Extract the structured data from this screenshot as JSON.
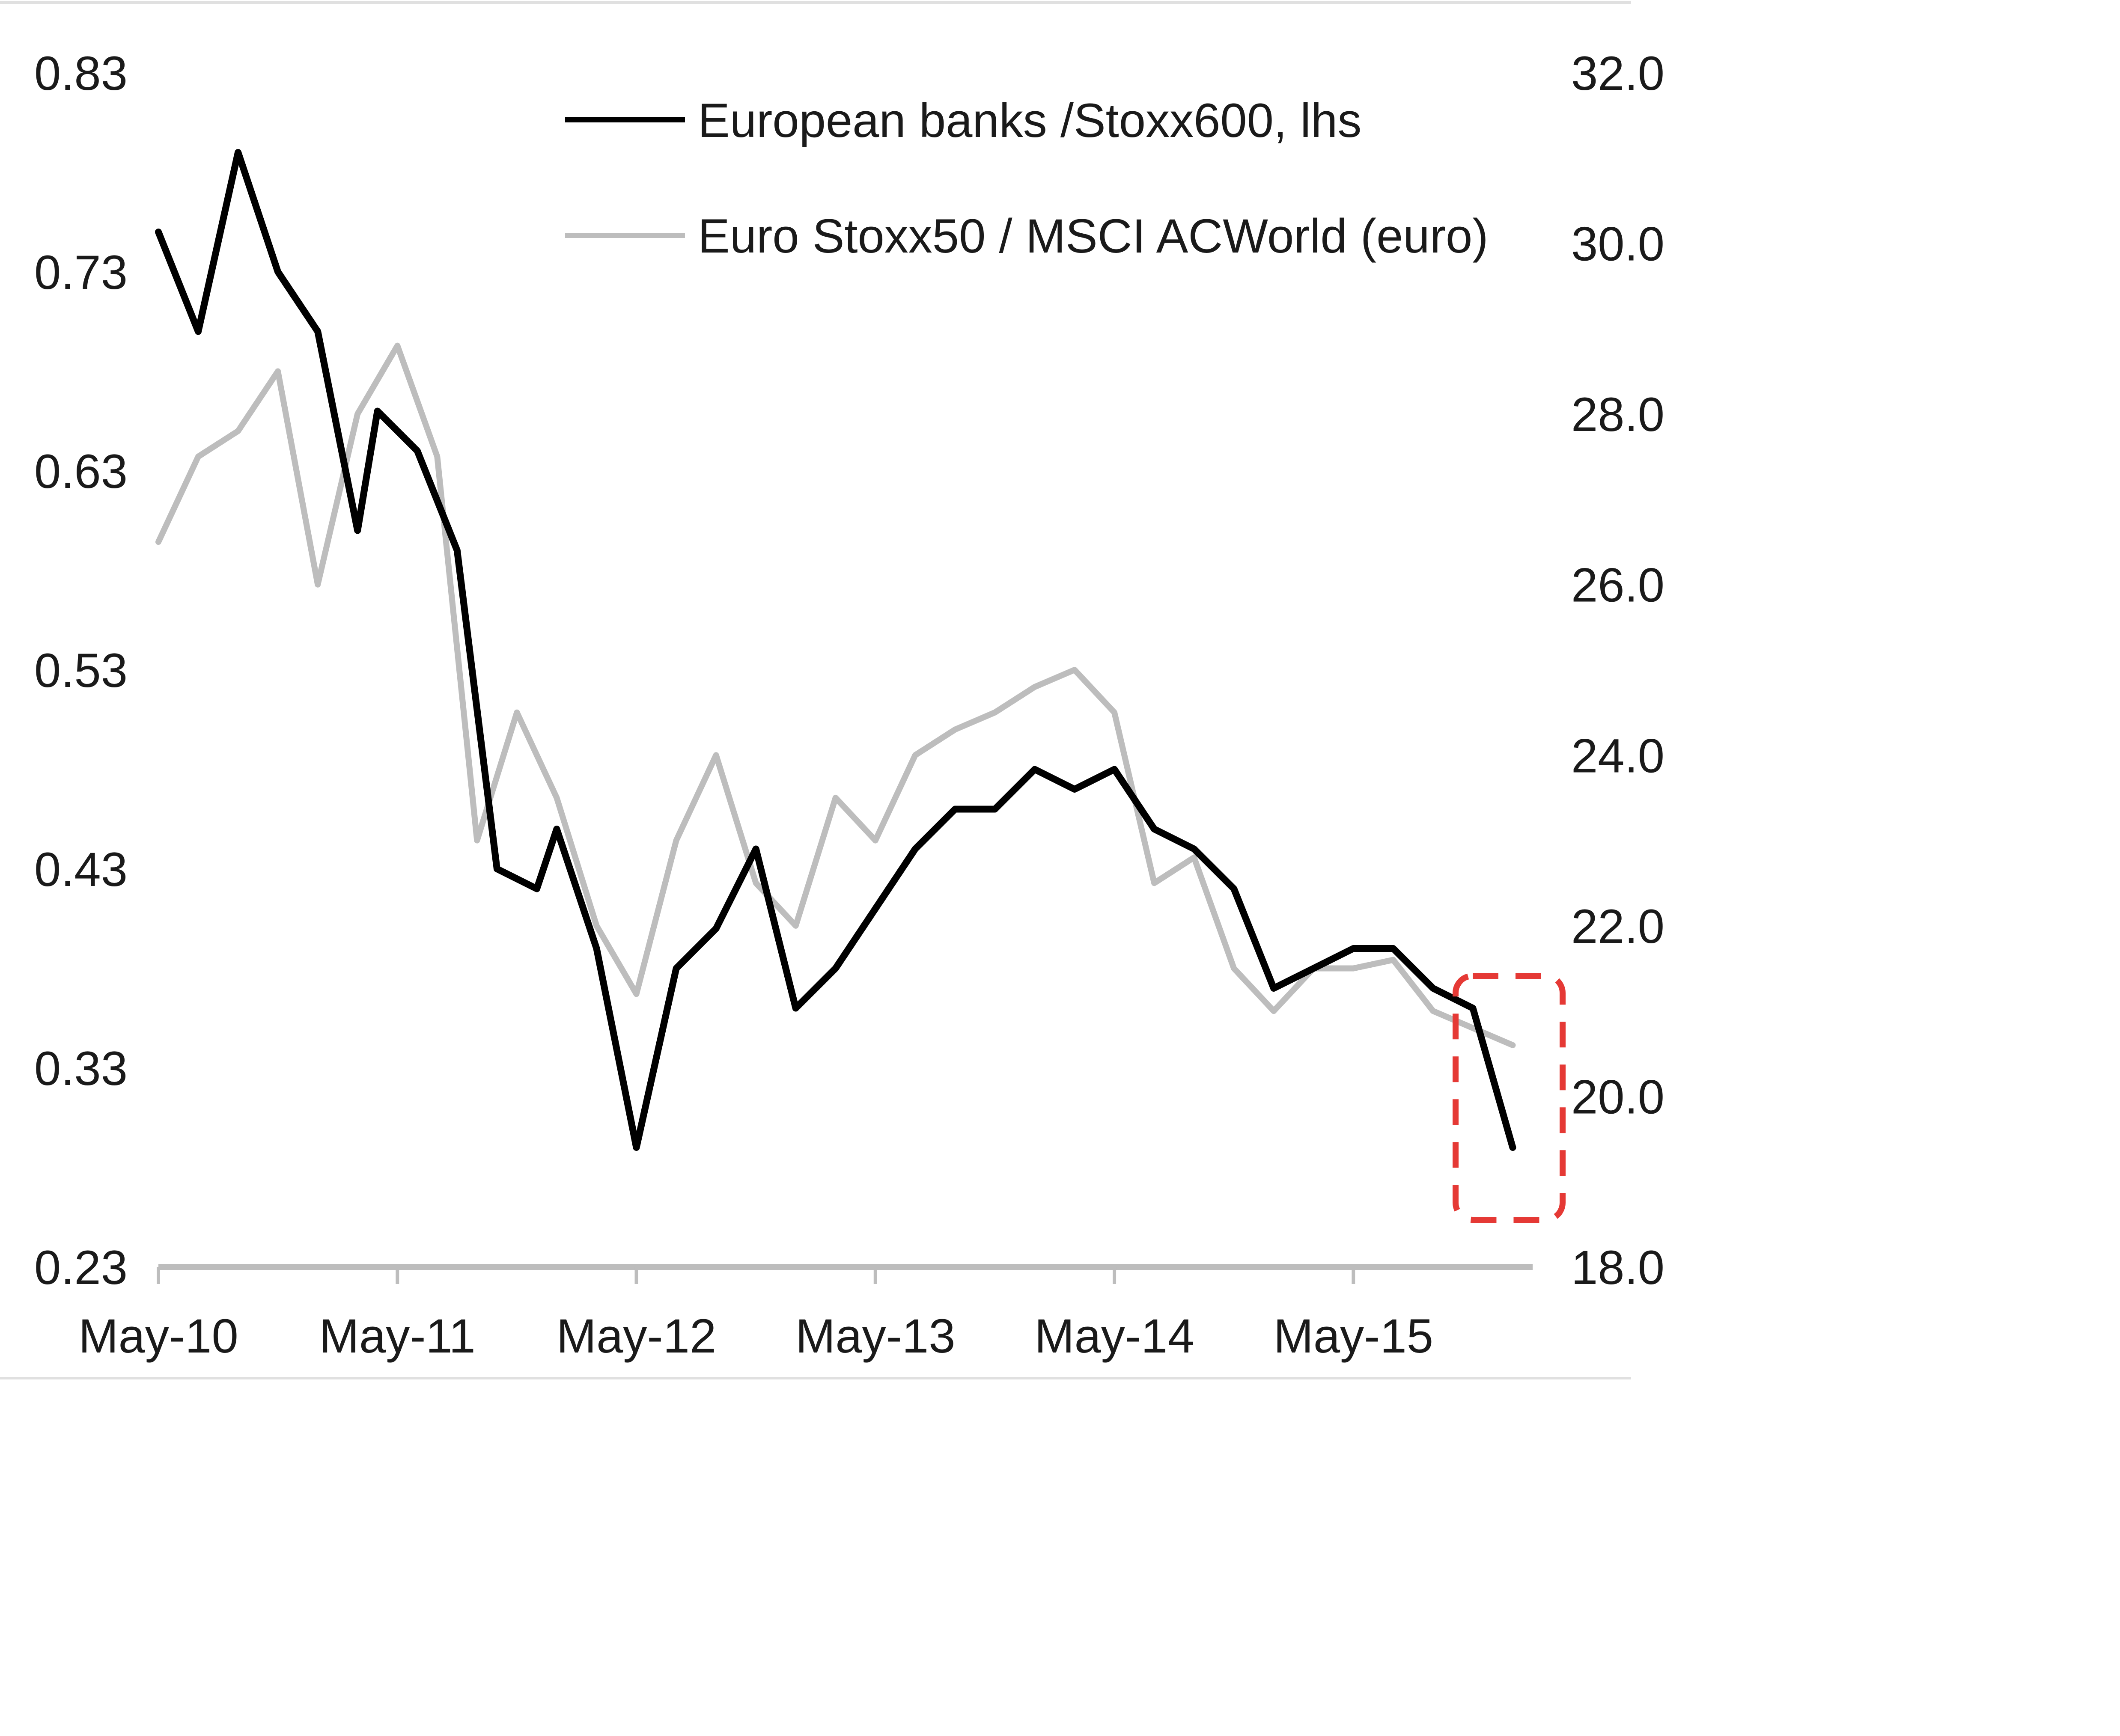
{
  "chart_data": {
    "type": "line",
    "title": "",
    "xlabel": "",
    "ylabel": "",
    "x_axis": {
      "ticks": [
        "May-10",
        "May-11",
        "May-12",
        "May-13",
        "May-14",
        "May-15"
      ],
      "range": [
        "2010-05",
        "2016-02"
      ]
    },
    "y_left": {
      "ticks": [
        "0.83",
        "0.73",
        "0.63",
        "0.53",
        "0.43",
        "0.33",
        "0.23"
      ],
      "range": [
        0.23,
        0.83
      ]
    },
    "y_right": {
      "ticks": [
        "32.0",
        "30.0",
        "28.0",
        "26.0",
        "24.0",
        "22.0",
        "20.0",
        "18.0"
      ],
      "range": [
        18.0,
        32.0
      ]
    },
    "grid": false,
    "legend_position": "top-center",
    "series": [
      {
        "name": "European banks /Stoxx600, lhs",
        "axis": "left",
        "color": "#000000",
        "points": [
          [
            "2010-05",
            0.75
          ],
          [
            "2010-07",
            0.7
          ],
          [
            "2010-09",
            0.79
          ],
          [
            "2010-11",
            0.73
          ],
          [
            "2011-01",
            0.7
          ],
          [
            "2011-03",
            0.6
          ],
          [
            "2011-04",
            0.66
          ],
          [
            "2011-06",
            0.64
          ],
          [
            "2011-08",
            0.59
          ],
          [
            "2011-10",
            0.43
          ],
          [
            "2011-12",
            0.42
          ],
          [
            "2012-01",
            0.45
          ],
          [
            "2012-03",
            0.39
          ],
          [
            "2012-05",
            0.29
          ],
          [
            "2012-07",
            0.38
          ],
          [
            "2012-09",
            0.4
          ],
          [
            "2012-11",
            0.44
          ],
          [
            "2013-01",
            0.36
          ],
          [
            "2013-03",
            0.38
          ],
          [
            "2013-05",
            0.41
          ],
          [
            "2013-07",
            0.44
          ],
          [
            "2013-09",
            0.46
          ],
          [
            "2013-11",
            0.46
          ],
          [
            "2014-01",
            0.48
          ],
          [
            "2014-03",
            0.47
          ],
          [
            "2014-05",
            0.48
          ],
          [
            "2014-07",
            0.45
          ],
          [
            "2014-09",
            0.44
          ],
          [
            "2014-11",
            0.42
          ],
          [
            "2015-01",
            0.37
          ],
          [
            "2015-03",
            0.38
          ],
          [
            "2015-05",
            0.39
          ],
          [
            "2015-07",
            0.39
          ],
          [
            "2015-09",
            0.37
          ],
          [
            "2015-11",
            0.36
          ],
          [
            "2016-01",
            0.29
          ]
        ]
      },
      {
        "name": "Euro Stoxx50 / MSCI ACWorld (euro)",
        "axis": "right",
        "color": "#bdbdbd",
        "points": [
          [
            "2010-05",
            26.5
          ],
          [
            "2010-07",
            27.5
          ],
          [
            "2010-09",
            27.8
          ],
          [
            "2010-11",
            28.5
          ],
          [
            "2011-01",
            26.0
          ],
          [
            "2011-03",
            28.0
          ],
          [
            "2011-05",
            28.8
          ],
          [
            "2011-07",
            27.5
          ],
          [
            "2011-09",
            23.0
          ],
          [
            "2011-11",
            24.5
          ],
          [
            "2012-01",
            23.5
          ],
          [
            "2012-03",
            22.0
          ],
          [
            "2012-05",
            21.2
          ],
          [
            "2012-07",
            23.0
          ],
          [
            "2012-09",
            24.0
          ],
          [
            "2012-11",
            22.5
          ],
          [
            "2013-01",
            22.0
          ],
          [
            "2013-03",
            23.5
          ],
          [
            "2013-05",
            23.0
          ],
          [
            "2013-07",
            24.0
          ],
          [
            "2013-09",
            24.3
          ],
          [
            "2013-11",
            24.5
          ],
          [
            "2014-01",
            24.8
          ],
          [
            "2014-03",
            25.0
          ],
          [
            "2014-05",
            24.5
          ],
          [
            "2014-07",
            22.5
          ],
          [
            "2014-09",
            22.8
          ],
          [
            "2014-11",
            21.5
          ],
          [
            "2015-01",
            21.0
          ],
          [
            "2015-03",
            21.5
          ],
          [
            "2015-05",
            21.5
          ],
          [
            "2015-07",
            21.6
          ],
          [
            "2015-09",
            21.0
          ],
          [
            "2015-11",
            20.8
          ],
          [
            "2016-01",
            20.6
          ]
        ]
      }
    ],
    "annotations": [
      {
        "type": "dashed-box",
        "color": "#e53935",
        "around": "2016-01"
      }
    ]
  }
}
